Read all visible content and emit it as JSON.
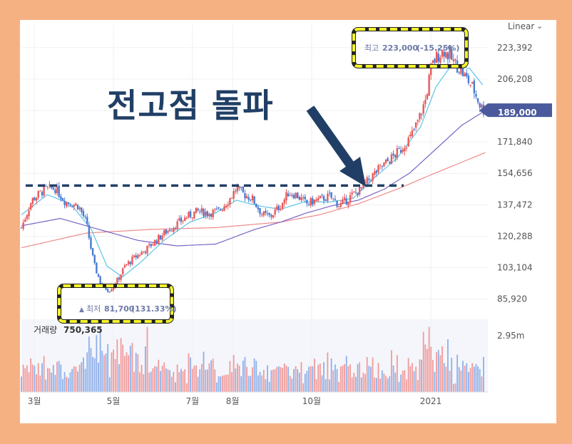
{
  "scale_mode": "Linear",
  "headline": "전고점 돌파",
  "price_tag": "189,000",
  "volume_label": "거래량",
  "volume_value": "750,365",
  "high_marker": {
    "label": "최고",
    "value": "223,000",
    "change": "(-15.25%)"
  },
  "low_marker": {
    "label": "최저",
    "value": "81,700",
    "change": "(131.33%)"
  },
  "colors": {
    "up": "#e8595a",
    "down": "#4a7bd1",
    "ma_short": "#5cc5e6",
    "ma_mid": "#7a63c4",
    "ma_long": "#ef8a8a",
    "highlight": "#f5f52a",
    "arrow": "#213f66"
  },
  "chart_data": {
    "type": "candlestick",
    "y_ticks": [
      "223,392",
      "206,208",
      "189,000",
      "171,840",
      "154,656",
      "137,472",
      "120,288",
      "103,104",
      "85,920"
    ],
    "y_tick_values": [
      223392,
      206208,
      189000,
      171840,
      154656,
      137472,
      120288,
      103104,
      85920
    ],
    "ylim": [
      78000,
      228000
    ],
    "x_ticks": [
      "3월",
      "5월",
      "7월",
      "8월",
      "10월",
      "2021"
    ],
    "x_tick_days": [
      0,
      61,
      122,
      153,
      214,
      306
    ],
    "xlim": [
      -10,
      350
    ],
    "volume_ticks": [
      "2.95m"
    ],
    "volume_tick_values": [
      2950000
    ],
    "volume_max": 3800000,
    "prior_high_level": 148000,
    "price_path": [
      [
        -10,
        125000
      ],
      [
        -2,
        140000
      ],
      [
        8,
        146000
      ],
      [
        16,
        146500
      ],
      [
        24,
        139000
      ],
      [
        34,
        137000
      ],
      [
        40,
        128000
      ],
      [
        46,
        105000
      ],
      [
        52,
        93000
      ],
      [
        58,
        91000
      ],
      [
        64,
        96000
      ],
      [
        70,
        104000
      ],
      [
        78,
        109000
      ],
      [
        86,
        113000
      ],
      [
        94,
        118000
      ],
      [
        102,
        123000
      ],
      [
        110,
        127000
      ],
      [
        118,
        131000
      ],
      [
        126,
        134000
      ],
      [
        134,
        133000
      ],
      [
        142,
        134000
      ],
      [
        150,
        140000
      ],
      [
        156,
        146500
      ],
      [
        162,
        143000
      ],
      [
        168,
        141000
      ],
      [
        176,
        132000
      ],
      [
        182,
        131000
      ],
      [
        190,
        137000
      ],
      [
        196,
        144000
      ],
      [
        202,
        143000
      ],
      [
        210,
        138000
      ],
      [
        218,
        140000
      ],
      [
        228,
        142000
      ],
      [
        236,
        137000
      ],
      [
        244,
        142000
      ],
      [
        252,
        146000
      ],
      [
        258,
        151000
      ],
      [
        266,
        157000
      ],
      [
        274,
        162000
      ],
      [
        282,
        167000
      ],
      [
        290,
        174000
      ],
      [
        296,
        183000
      ],
      [
        302,
        195000
      ],
      [
        306,
        212000
      ],
      [
        310,
        218000
      ],
      [
        316,
        222000
      ],
      [
        322,
        217000
      ],
      [
        330,
        210000
      ],
      [
        338,
        202000
      ],
      [
        344,
        192000
      ],
      [
        348,
        188000
      ]
    ],
    "ma_short_path": [
      [
        -10,
        132000
      ],
      [
        10,
        143000
      ],
      [
        28,
        138000
      ],
      [
        44,
        124000
      ],
      [
        56,
        104000
      ],
      [
        68,
        98000
      ],
      [
        82,
        106000
      ],
      [
        100,
        118000
      ],
      [
        120,
        128000
      ],
      [
        140,
        133000
      ],
      [
        156,
        140000
      ],
      [
        172,
        137000
      ],
      [
        190,
        135000
      ],
      [
        208,
        139000
      ],
      [
        228,
        139000
      ],
      [
        246,
        141000
      ],
      [
        262,
        152000
      ],
      [
        280,
        163000
      ],
      [
        298,
        180000
      ],
      [
        310,
        202000
      ],
      [
        322,
        214000
      ],
      [
        336,
        212000
      ],
      [
        346,
        203000
      ]
    ],
    "ma_mid_path": [
      [
        -10,
        126000
      ],
      [
        20,
        130000
      ],
      [
        50,
        124000
      ],
      [
        80,
        118000
      ],
      [
        110,
        115000
      ],
      [
        140,
        116000
      ],
      [
        170,
        124000
      ],
      [
        190,
        128000
      ],
      [
        210,
        133000
      ],
      [
        230,
        137000
      ],
      [
        250,
        140000
      ],
      [
        270,
        146000
      ],
      [
        290,
        155000
      ],
      [
        310,
        168000
      ],
      [
        330,
        181000
      ],
      [
        348,
        189000
      ]
    ],
    "ma_long_path": [
      [
        -10,
        114000
      ],
      [
        40,
        122000
      ],
      [
        90,
        124000
      ],
      [
        140,
        125000
      ],
      [
        190,
        128000
      ],
      [
        220,
        132000
      ],
      [
        250,
        138000
      ],
      [
        280,
        146000
      ],
      [
        310,
        155000
      ],
      [
        348,
        166000
      ]
    ]
  }
}
